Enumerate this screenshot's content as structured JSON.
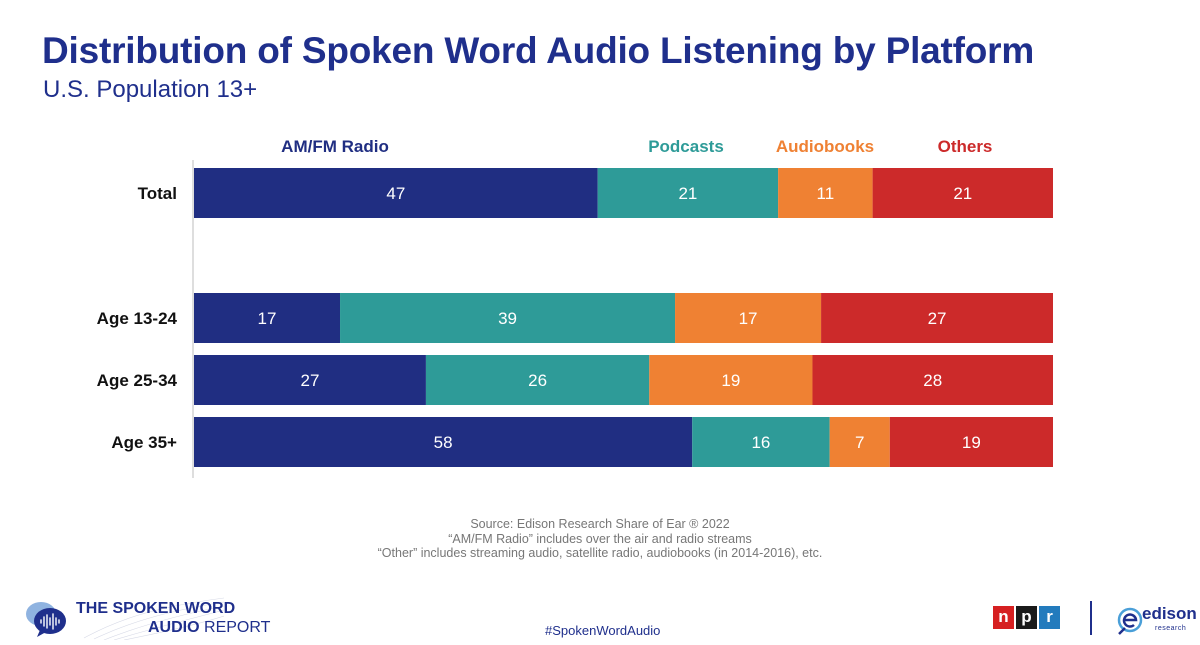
{
  "header": {
    "title": "Distribution of Spoken Word Audio Listening by Platform",
    "subtitle": "U.S. Population 13+"
  },
  "chart_data": {
    "type": "bar",
    "orientation": "horizontal",
    "stacked": true,
    "categories": [
      "Total",
      "Age 13-24",
      "Age 25-34",
      "Age 35+"
    ],
    "series": [
      {
        "name": "AM/FM Radio",
        "color": "#202e82",
        "values": [
          47,
          17,
          27,
          58
        ]
      },
      {
        "name": "Podcasts",
        "color": "#2e9b98",
        "values": [
          21,
          39,
          26,
          16
        ]
      },
      {
        "name": "Audiobooks",
        "color": "#ef8133",
        "values": [
          11,
          17,
          19,
          7
        ]
      },
      {
        "name": "Others",
        "color": "#cc2a2a",
        "values": [
          21,
          27,
          28,
          19
        ]
      }
    ],
    "legend_position": "top",
    "xlim": [
      0,
      100
    ],
    "grid": false,
    "data_labels": true
  },
  "footer": {
    "source_lines": [
      "Source: Edison Research Share of Ear ® 2022",
      "“AM/FM Radio” includes over the air and radio streams",
      "“Other” includes streaming audio, satellite radio, audiobooks (in 2014-2016), etc."
    ],
    "brand_line1": "THE SPOKEN WORD",
    "brand_line2_bold": "AUDIO",
    "brand_line2_rest": " REPORT",
    "hashtag": "#SpokenWordAudio",
    "npr_letters": [
      "n",
      "p",
      "r"
    ],
    "npr_colors": [
      "#d62021",
      "#1a1a1a",
      "#237bbd"
    ],
    "edison_name": "edison",
    "edison_sub": "research",
    "brand_icon": "chat-bubble-soundwave-icon",
    "edison_icon": "edison-e-logo-icon"
  }
}
